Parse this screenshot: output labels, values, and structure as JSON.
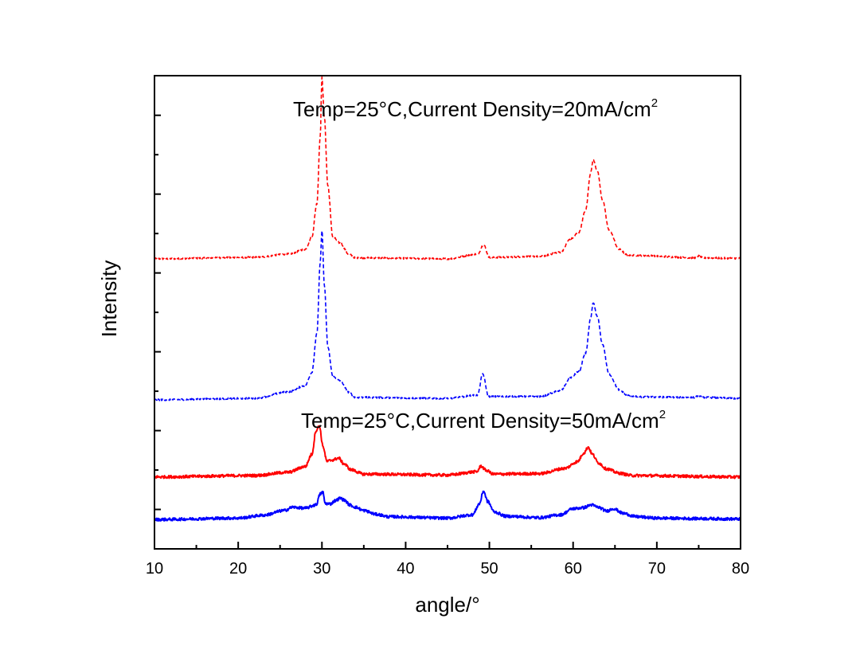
{
  "chart_data": {
    "type": "line",
    "title": "",
    "xlabel": "angle/°",
    "ylabel": "Intensity",
    "xlim": [
      10,
      80
    ],
    "xticks": [
      10,
      20,
      30,
      40,
      50,
      60,
      70,
      80
    ],
    "ylim": [
      0,
      100
    ],
    "grid": false,
    "legend": "none",
    "annotations": [
      {
        "text": "Temp=25°C,Current Density=20mA/cm",
        "sup": "2",
        "x": 53.3,
        "y": 96.6
      },
      {
        "text": "Temp=25°C,Current Density=50mA/cm",
        "sup": "2",
        "x": 53.3,
        "y": 27.6
      }
    ],
    "series": [
      {
        "name": "20mA/cm2 red dashed",
        "color": "#ff0000",
        "style": "dashed",
        "baseline": 61.3,
        "x": [
          10,
          22,
          26,
          28,
          28.8,
          29.4,
          29.8,
          30.0,
          30.3,
          30.7,
          31.3,
          32.2,
          33.2,
          34,
          45,
          48.6,
          49.3,
          50,
          56,
          58.5,
          59.7,
          60.7,
          61.5,
          62.1,
          62.4,
          62.9,
          63.5,
          64.3,
          65.5,
          66.5,
          68,
          74.5,
          75,
          75.5,
          80
        ],
        "values": [
          61.3,
          61.6,
          62.3,
          63.3,
          65.9,
          73.0,
          87.3,
          99.6,
          91.0,
          76.8,
          65.9,
          64.6,
          62.3,
          61.5,
          61.3,
          62.3,
          64.3,
          61.6,
          61.8,
          62.7,
          65.5,
          66.9,
          71.6,
          79.5,
          82.3,
          79.9,
          73.8,
          67.3,
          63.3,
          62.1,
          62.0,
          61.5,
          61.9,
          61.5,
          61.4
        ]
      },
      {
        "name": "20mA/cm2 blue dashed",
        "color": "#0000ff",
        "style": "dashed",
        "baseline": 31.5,
        "x": [
          10,
          22,
          26,
          28,
          28.8,
          29.4,
          29.8,
          30.0,
          30.3,
          30.7,
          31.3,
          32.2,
          33.2,
          34,
          45,
          48.6,
          49.2,
          49.9,
          56,
          58.5,
          59.7,
          60.7,
          61.5,
          62.1,
          62.4,
          62.9,
          63.5,
          64.3,
          65.5,
          66.5,
          68,
          74.5,
          75,
          75.5,
          80
        ],
        "values": [
          31.5,
          31.8,
          33.2,
          34.5,
          37.3,
          45.5,
          60.5,
          67.3,
          55.5,
          42.7,
          36.4,
          35.5,
          33.1,
          32.0,
          31.8,
          32.5,
          37.0,
          32.2,
          32.2,
          33.4,
          36.2,
          37.5,
          41.4,
          48.7,
          52.0,
          49.0,
          43.3,
          36.9,
          33.6,
          32.4,
          32.1,
          32.0,
          32.4,
          32.0,
          31.8
        ]
      },
      {
        "name": "50mA/cm2 red solid",
        "color": "#ff0000",
        "style": "solid",
        "baseline": 15.2,
        "x": [
          10,
          22,
          26,
          28,
          28.8,
          29.3,
          29.7,
          30.1,
          30.6,
          31.3,
          32.0,
          32.6,
          33.5,
          35,
          45,
          48.5,
          49.0,
          49.6,
          50.5,
          56,
          59,
          60.5,
          61.3,
          61.8,
          62.3,
          63,
          64,
          65.5,
          67,
          80
        ],
        "values": [
          15.2,
          15.5,
          16.2,
          17.4,
          20.0,
          25.0,
          26.0,
          21.8,
          18.5,
          18.8,
          19.2,
          18.0,
          16.7,
          15.8,
          15.6,
          16.3,
          17.5,
          16.6,
          15.8,
          15.9,
          17.0,
          18.4,
          20.3,
          21.5,
          20.0,
          18.2,
          16.9,
          16.0,
          15.5,
          15.2
        ]
      },
      {
        "name": "50mA/cm2 blue solid",
        "color": "#0000ff",
        "style": "solid",
        "baseline": 6.2,
        "x": [
          10,
          20,
          23,
          25.5,
          26.5,
          28,
          29.3,
          29.8,
          30.1,
          30.4,
          31,
          31.6,
          32.2,
          32.7,
          33.3,
          34,
          35,
          36.5,
          38,
          45,
          48,
          48.8,
          49.3,
          49.8,
          50.6,
          52,
          56,
          58.5,
          60,
          61.2,
          62.2,
          63,
          64,
          64.8,
          66,
          67.5,
          70,
          75,
          80
        ],
        "values": [
          6.2,
          6.5,
          7.1,
          8.1,
          8.8,
          8.6,
          9.3,
          11.6,
          12.0,
          9.6,
          9.5,
          10.2,
          10.7,
          10.3,
          9.3,
          8.8,
          8.1,
          7.3,
          6.8,
          6.5,
          7.2,
          9.5,
          12.2,
          10.0,
          7.8,
          6.9,
          6.6,
          7.2,
          8.5,
          8.7,
          9.3,
          8.8,
          8.0,
          8.5,
          7.5,
          6.8,
          6.5,
          6.4,
          6.3
        ]
      }
    ]
  }
}
